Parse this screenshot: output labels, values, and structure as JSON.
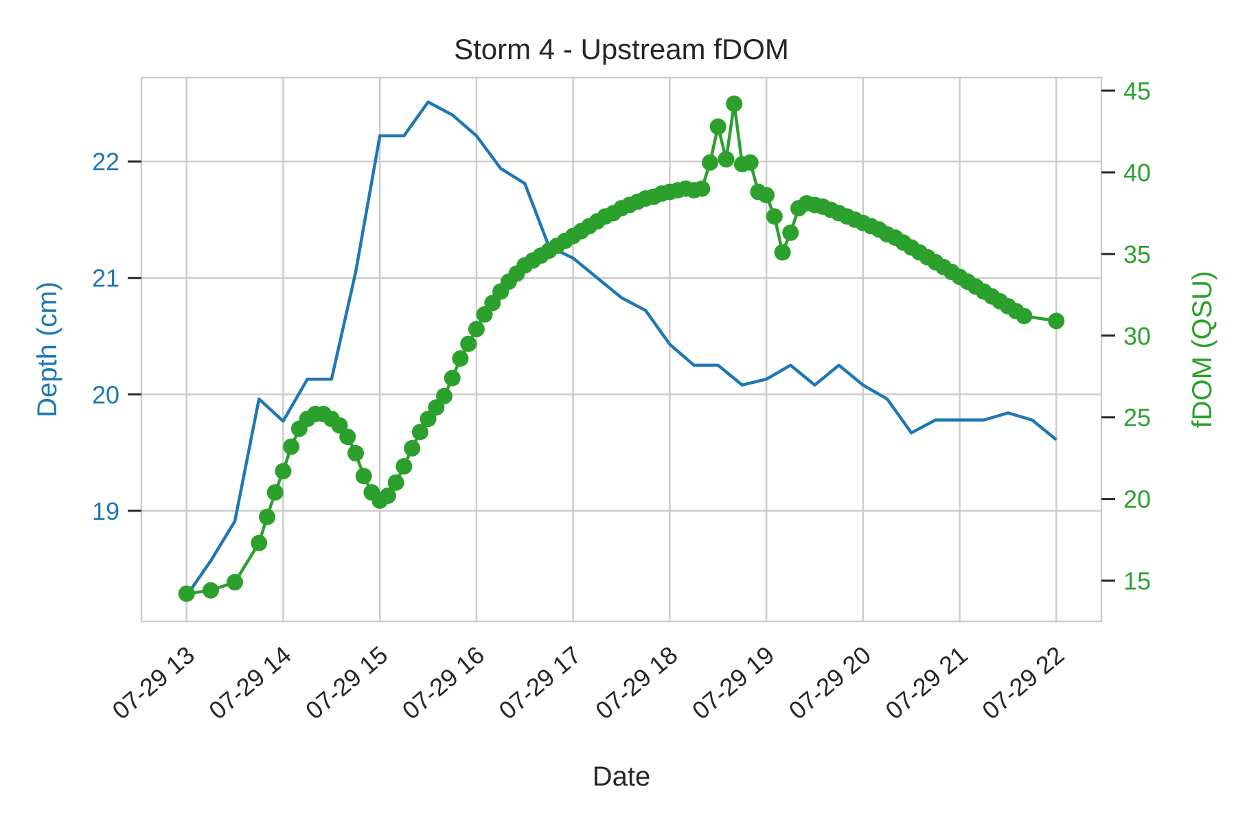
{
  "chart_data": {
    "type": "line",
    "title": "Storm 4 - Upstream fDOM",
    "xlabel": "Date",
    "x_tick_labels": [
      "07-29 13",
      "07-29 14",
      "07-29 15",
      "07-29 16",
      "07-29 17",
      "07-29 18",
      "07-29 19",
      "07-29 20",
      "07-29 21",
      "07-29 22"
    ],
    "x_range": [
      "07-29 12:32",
      "07-29 22:28"
    ],
    "y_left": {
      "label": "Depth (cm)",
      "ticks": [
        19,
        20,
        21,
        22
      ],
      "range": [
        18.05,
        22.72
      ],
      "color": "#1f77b4"
    },
    "y_right": {
      "label": "fDOM (QSU)",
      "ticks": [
        15,
        20,
        25,
        30,
        35,
        40,
        45
      ],
      "range": [
        12.5,
        45.8
      ],
      "color": "#2ca02c"
    },
    "grid": true,
    "series": [
      {
        "axis": "left",
        "color": "#1f77b4",
        "marker": "none",
        "points": [
          [
            "07-29 13:00",
            18.27
          ],
          [
            "07-29 13:15",
            18.57
          ],
          [
            "07-29 13:30",
            18.91
          ],
          [
            "07-29 13:45",
            19.96
          ],
          [
            "07-29 14:00",
            19.77
          ],
          [
            "07-29 14:15",
            20.13
          ],
          [
            "07-29 14:30",
            20.13
          ],
          [
            "07-29 14:45",
            21.05
          ],
          [
            "07-29 15:00",
            22.22
          ],
          [
            "07-29 15:15",
            22.22
          ],
          [
            "07-29 15:30",
            22.51
          ],
          [
            "07-29 15:45",
            22.4
          ],
          [
            "07-29 16:00",
            22.22
          ],
          [
            "07-29 16:15",
            21.94
          ],
          [
            "07-29 16:30",
            21.81
          ],
          [
            "07-29 16:45",
            21.27
          ],
          [
            "07-29 17:00",
            21.17
          ],
          [
            "07-29 17:15",
            21.0
          ],
          [
            "07-29 17:30",
            20.83
          ],
          [
            "07-29 17:45",
            20.72
          ],
          [
            "07-29 18:00",
            20.43
          ],
          [
            "07-29 18:15",
            20.25
          ],
          [
            "07-29 18:30",
            20.25
          ],
          [
            "07-29 18:45",
            20.08
          ],
          [
            "07-29 19:00",
            20.13
          ],
          [
            "07-29 19:15",
            20.25
          ],
          [
            "07-29 19:30",
            20.08
          ],
          [
            "07-29 19:45",
            20.25
          ],
          [
            "07-29 20:00",
            20.08
          ],
          [
            "07-29 20:15",
            19.96
          ],
          [
            "07-29 20:30",
            19.67
          ],
          [
            "07-29 20:45",
            19.78
          ],
          [
            "07-29 21:00",
            19.78
          ],
          [
            "07-29 21:15",
            19.78
          ],
          [
            "07-29 21:30",
            19.84
          ],
          [
            "07-29 21:45",
            19.78
          ],
          [
            "07-29 22:00",
            19.61
          ]
        ]
      },
      {
        "axis": "right",
        "color": "#2ca02c",
        "marker": "circle",
        "points": [
          [
            "07-29 13:00",
            14.2
          ],
          [
            "07-29 13:15",
            14.4
          ],
          [
            "07-29 13:30",
            14.9
          ],
          [
            "07-29 13:45",
            17.3
          ],
          [
            "07-29 13:50",
            18.9
          ],
          [
            "07-29 13:55",
            20.4
          ],
          [
            "07-29 14:00",
            21.7
          ],
          [
            "07-29 14:05",
            23.2
          ],
          [
            "07-29 14:10",
            24.3
          ],
          [
            "07-29 14:15",
            24.9
          ],
          [
            "07-29 14:20",
            25.2
          ],
          [
            "07-29 14:25",
            25.2
          ],
          [
            "07-29 14:30",
            24.9
          ],
          [
            "07-29 14:35",
            24.5
          ],
          [
            "07-29 14:40",
            23.8
          ],
          [
            "07-29 14:45",
            22.8
          ],
          [
            "07-29 14:50",
            21.4
          ],
          [
            "07-29 14:55",
            20.4
          ],
          [
            "07-29 15:00",
            19.9
          ],
          [
            "07-29 15:05",
            20.2
          ],
          [
            "07-29 15:10",
            21.0
          ],
          [
            "07-29 15:15",
            22.0
          ],
          [
            "07-29 15:20",
            23.1
          ],
          [
            "07-29 15:25",
            24.1
          ],
          [
            "07-29 15:30",
            24.9
          ],
          [
            "07-29 15:35",
            25.6
          ],
          [
            "07-29 15:40",
            26.3
          ],
          [
            "07-29 15:45",
            27.4
          ],
          [
            "07-29 15:50",
            28.6
          ],
          [
            "07-29 15:55",
            29.5
          ],
          [
            "07-29 16:00",
            30.4
          ],
          [
            "07-29 16:05",
            31.3
          ],
          [
            "07-29 16:10",
            32.0
          ],
          [
            "07-29 16:15",
            32.7
          ],
          [
            "07-29 16:20",
            33.3
          ],
          [
            "07-29 16:25",
            33.8
          ],
          [
            "07-29 16:30",
            34.3
          ],
          [
            "07-29 16:35",
            34.6
          ],
          [
            "07-29 16:40",
            34.9
          ],
          [
            "07-29 16:45",
            35.2
          ],
          [
            "07-29 16:50",
            35.5
          ],
          [
            "07-29 16:55",
            35.8
          ],
          [
            "07-29 17:00",
            36.1
          ],
          [
            "07-29 17:05",
            36.4
          ],
          [
            "07-29 17:10",
            36.7
          ],
          [
            "07-29 17:15",
            37.0
          ],
          [
            "07-29 17:20",
            37.3
          ],
          [
            "07-29 17:25",
            37.5
          ],
          [
            "07-29 17:30",
            37.8
          ],
          [
            "07-29 17:35",
            38.0
          ],
          [
            "07-29 17:40",
            38.2
          ],
          [
            "07-29 17:45",
            38.4
          ],
          [
            "07-29 17:50",
            38.5
          ],
          [
            "07-29 17:55",
            38.7
          ],
          [
            "07-29 18:00",
            38.8
          ],
          [
            "07-29 18:05",
            38.9
          ],
          [
            "07-29 18:10",
            39.0
          ],
          [
            "07-29 18:15",
            38.9
          ],
          [
            "07-29 18:20",
            39.0
          ],
          [
            "07-29 18:25",
            40.6
          ],
          [
            "07-29 18:30",
            42.8
          ],
          [
            "07-29 18:35",
            40.8
          ],
          [
            "07-29 18:40",
            44.2
          ],
          [
            "07-29 18:45",
            40.5
          ],
          [
            "07-29 18:50",
            40.6
          ],
          [
            "07-29 18:55",
            38.8
          ],
          [
            "07-29 19:00",
            38.6
          ],
          [
            "07-29 19:05",
            37.3
          ],
          [
            "07-29 19:10",
            35.1
          ],
          [
            "07-29 19:15",
            36.3
          ],
          [
            "07-29 19:20",
            37.8
          ],
          [
            "07-29 19:25",
            38.1
          ],
          [
            "07-29 19:30",
            38.0
          ],
          [
            "07-29 19:35",
            37.9
          ],
          [
            "07-29 19:40",
            37.7
          ],
          [
            "07-29 19:45",
            37.5
          ],
          [
            "07-29 19:50",
            37.3
          ],
          [
            "07-29 19:55",
            37.1
          ],
          [
            "07-29 20:00",
            36.9
          ],
          [
            "07-29 20:05",
            36.7
          ],
          [
            "07-29 20:10",
            36.5
          ],
          [
            "07-29 20:15",
            36.2
          ],
          [
            "07-29 20:20",
            36.0
          ],
          [
            "07-29 20:25",
            35.7
          ],
          [
            "07-29 20:30",
            35.4
          ],
          [
            "07-29 20:35",
            35.1
          ],
          [
            "07-29 20:40",
            34.8
          ],
          [
            "07-29 20:45",
            34.5
          ],
          [
            "07-29 20:50",
            34.2
          ],
          [
            "07-29 20:55",
            33.9
          ],
          [
            "07-29 21:00",
            33.6
          ],
          [
            "07-29 21:05",
            33.3
          ],
          [
            "07-29 21:10",
            33.0
          ],
          [
            "07-29 21:15",
            32.7
          ],
          [
            "07-29 21:20",
            32.4
          ],
          [
            "07-29 21:25",
            32.1
          ],
          [
            "07-29 21:30",
            31.8
          ],
          [
            "07-29 21:35",
            31.5
          ],
          [
            "07-29 21:40",
            31.2
          ],
          [
            "07-29 22:00",
            30.9
          ]
        ]
      }
    ]
  }
}
